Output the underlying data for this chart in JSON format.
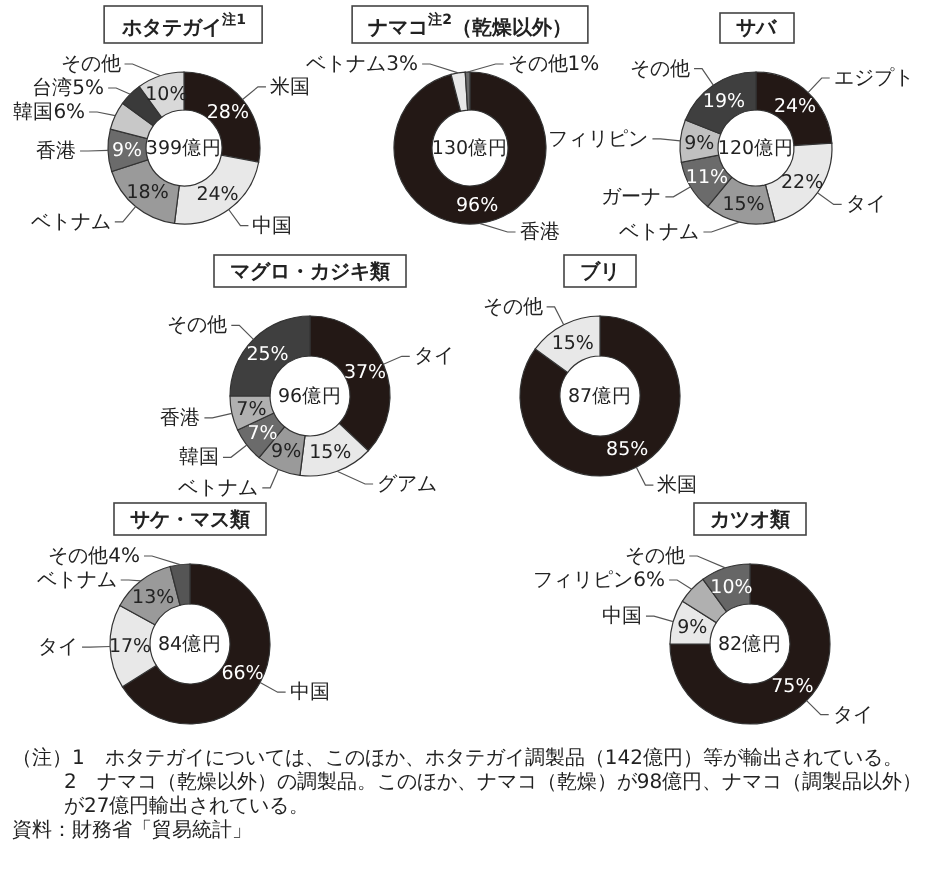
{
  "chart_data": [
    {
      "type": "donut",
      "title": "ホタテガイ$^{注1}$",
      "categories": [
        "米国",
        "中国",
        "ベトナム",
        "香港",
        "韓国6%",
        "台湾5%",
        "その他"
      ],
      "values": [
        28,
        24,
        18,
        9,
        6,
        5,
        10
      ],
      "value_labels": [
        "28%",
        "24%",
        "18%",
        "9%",
        null,
        null,
        "10%"
      ],
      "colors": [
        "#231815",
        "#e8e8e8",
        "#9a9a9a",
        "#6b6b6b",
        "#c8c8c8",
        "#3a3a3a",
        "#d9d9d9"
      ],
      "annotations": [
        "399億円"
      ]
    },
    {
      "type": "donut",
      "title": "ナマコ$^{注2}$（乾燥以外）",
      "categories": [
        "香港",
        "ベトナム3%",
        "その他1%"
      ],
      "values": [
        96,
        3,
        1
      ],
      "value_labels": [
        "96%",
        null,
        null
      ],
      "colors": [
        "#231815",
        "#e8e8e8",
        "#6b6b6b"
      ],
      "annotations": [
        "130億円"
      ]
    },
    {
      "type": "donut",
      "title": "サバ",
      "categories": [
        "エジプト",
        "タイ",
        "ベトナム",
        "ガーナ",
        "フィリピン",
        "その他"
      ],
      "values": [
        24,
        22,
        15,
        11,
        9,
        19
      ],
      "value_labels": [
        "24%",
        "22%",
        "15%",
        "11%",
        "9%",
        "19%"
      ],
      "colors": [
        "#231815",
        "#e8e8e8",
        "#9a9a9a",
        "#6b6b6b",
        "#c0c0c0",
        "#3f3f3f"
      ],
      "annotations": [
        "120億円"
      ]
    },
    {
      "type": "donut",
      "title": "マグロ・カジキ類",
      "categories": [
        "タイ",
        "グアム",
        "ベトナム",
        "韓国",
        "香港",
        "その他"
      ],
      "values": [
        37,
        15,
        9,
        7,
        7,
        25
      ],
      "value_labels": [
        "37%",
        "15%",
        "9%",
        "7%",
        "7%",
        "25%"
      ],
      "colors": [
        "#231815",
        "#e8e8e8",
        "#9a9a9a",
        "#6b6b6b",
        "#b0b0b0",
        "#3f3f3f"
      ],
      "annotations": [
        "96億円"
      ]
    },
    {
      "type": "donut",
      "title": "ブリ",
      "categories": [
        "米国",
        "その他"
      ],
      "values": [
        85,
        15
      ],
      "value_labels": [
        "85%",
        "15%"
      ],
      "colors": [
        "#231815",
        "#e8e8e8"
      ],
      "annotations": [
        "87億円"
      ]
    },
    {
      "type": "donut",
      "title": "サケ・マス類",
      "categories": [
        "中国",
        "タイ",
        "ベトナム",
        "その他4%"
      ],
      "values": [
        66,
        17,
        13,
        4
      ],
      "value_labels": [
        "66%",
        "17%",
        "13%",
        null
      ],
      "colors": [
        "#231815",
        "#e8e8e8",
        "#9a9a9a",
        "#555555"
      ],
      "annotations": [
        "84億円"
      ]
    },
    {
      "type": "donut",
      "title": "カツオ類",
      "categories": [
        "タイ",
        "中国",
        "フィリピン6%",
        "その他"
      ],
      "values": [
        75,
        9,
        6,
        10
      ],
      "value_labels": [
        "75%",
        "9%",
        null,
        "10%"
      ],
      "colors": [
        "#231815",
        "#e8e8e8",
        "#b0b0b0",
        "#666666"
      ],
      "annotations": [
        "82億円"
      ]
    },
    {
      "type": "other",
      "annotations": [
        "（注）1　ホタテガイについては、このほか、ホタテガイ調製品（142億円）等が輸出されている。",
        "2　ナマコ（乾燥以外）の調製品。このほか、ナマコ（乾燥）が98億円、ナマコ（調製品以外）が27億円輸出されている。",
        "資料：財務省「貿易統計」"
      ]
    }
  ]
}
